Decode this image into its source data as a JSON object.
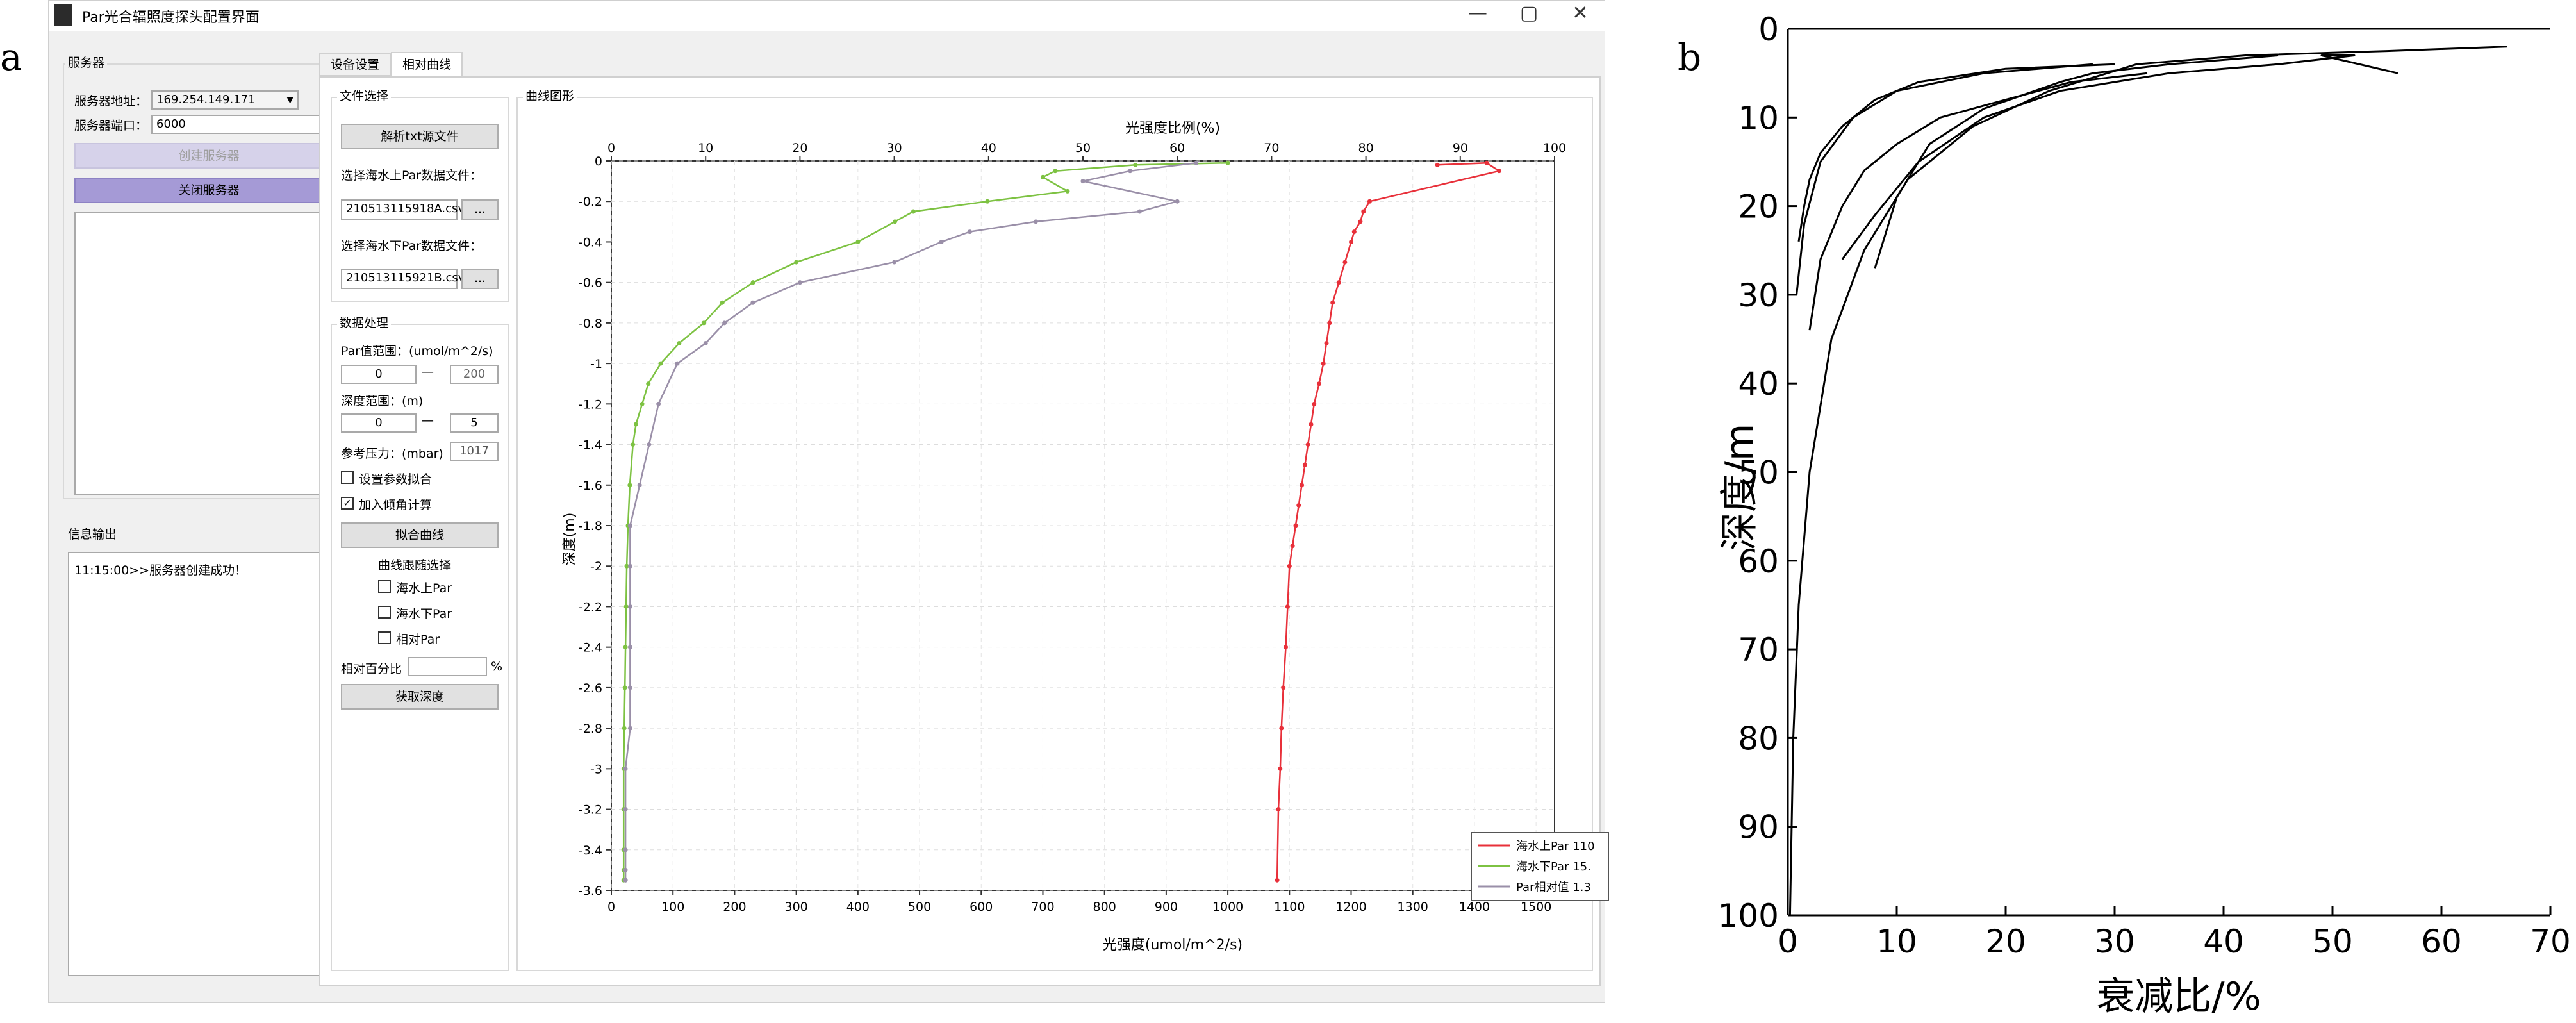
{
  "panel_a_label": "a",
  "panel_b_label": "b",
  "window": {
    "title": "Par光合辐照度探头配置界面",
    "min_glyph": "—",
    "max_glyph": "▢",
    "close_glyph": "✕"
  },
  "server": {
    "group_title": "服务器",
    "address_label": "服务器地址：",
    "address_value": "169.254.149.171",
    "port_label": "服务器端口：",
    "port_value": "6000",
    "create_button": "创建服务器",
    "close_button": "关闭服务器"
  },
  "info": {
    "group_title": "信息输出",
    "log_line": "11:15:00>>服务器创建成功！"
  },
  "tabs": [
    "设备设置",
    "相对曲线"
  ],
  "file_select": {
    "group_title": "文件选择",
    "parse_button": "解析txt源文件",
    "above_label": "选择海水上Par数据文件：",
    "above_file": "210513115918A.csv",
    "below_label": "选择海水下Par数据文件：",
    "below_file": "210513115921B.csv",
    "browse": "..."
  },
  "processing": {
    "group_title": "数据处理",
    "par_range_label": "Par值范围：(umol/m^2/s)",
    "par_min": "0",
    "par_max": "200",
    "depth_range_label": "深度范围：(m)",
    "depth_min": "0",
    "depth_max": "5",
    "range_sep": "—",
    "pressure_label": "参考压力：(mbar)",
    "pressure_value": "1017",
    "fit_param_label": "设置参数拟合",
    "fit_param_checked": false,
    "angle_label": "加入倾角计算",
    "angle_checked": true,
    "fit_button": "拟合曲线",
    "curve_select_title": "曲线跟随选择",
    "curve_options": [
      "海水上Par",
      "海水下Par",
      "相对Par"
    ],
    "ratio_label": "相对百分比",
    "ratio_value": "",
    "ratio_unit": "%",
    "depth_button": "获取深度"
  },
  "plot": {
    "group_title": "曲线图形",
    "top_axis_label": "光强度比例(%)",
    "bottom_axis_label": "光强度(umol/m^2/s)",
    "y_axis_label": "深度(m)",
    "legend": [
      "海水上Par 110",
      "海水下Par 15.",
      "Par相对值 1.3"
    ],
    "colors": {
      "above": "#e8303a",
      "below": "#7dc242",
      "relative": "#9a8fa8"
    }
  },
  "chart_data": {
    "type": "line",
    "y_top_ticks": [
      "0",
      "-0.2",
      "-0.4",
      "-0.6",
      "-0.8",
      "-1",
      "-1.2",
      "-1.4",
      "-1.6",
      "-1.8",
      "-2",
      "-2.2",
      "-2.4",
      "-2.6",
      "-2.8",
      "-3",
      "-3.2",
      "-3.4",
      "-3.6"
    ],
    "x_bottom_ticks": [
      "0",
      "100",
      "200",
      "300",
      "400",
      "500",
      "600",
      "700",
      "800",
      "900",
      "1000",
      "1100",
      "1200",
      "1300",
      "1400",
      "1500"
    ],
    "x_top_ticks": [
      "0",
      "10",
      "20",
      "30",
      "40",
      "50",
      "60",
      "70",
      "80",
      "90",
      "100"
    ],
    "xlim_bottom": [
      0,
      1530
    ],
    "xlim_top": [
      0,
      100
    ],
    "ylim": [
      -3.6,
      0
    ],
    "above_par": {
      "x": [
        1340,
        1420,
        1440,
        1230,
        1220,
        1215,
        1205,
        1200,
        1190,
        1180,
        1170,
        1165,
        1160,
        1155,
        1148,
        1140,
        1135,
        1130,
        1125,
        1120,
        1115,
        1110,
        1105,
        1100,
        1097,
        1094,
        1090,
        1087,
        1085,
        1082,
        1080
      ],
      "y": [
        -0.02,
        -0.01,
        -0.05,
        -0.2,
        -0.25,
        -0.3,
        -0.35,
        -0.4,
        -0.5,
        -0.6,
        -0.7,
        -0.8,
        -0.9,
        -1.0,
        -1.1,
        -1.2,
        -1.3,
        -1.4,
        -1.5,
        -1.6,
        -1.7,
        -1.8,
        -1.9,
        -2.0,
        -2.2,
        -2.4,
        -2.6,
        -2.8,
        -3.0,
        -3.2,
        -3.55
      ]
    },
    "below_par": {
      "x": [
        1000,
        850,
        720,
        700,
        740,
        610,
        490,
        460,
        400,
        300,
        230,
        180,
        150,
        110,
        80,
        60,
        50,
        40,
        35,
        30,
        27,
        25,
        24,
        23,
        22,
        21,
        20,
        20,
        20,
        20,
        20
      ],
      "y": [
        -0.01,
        -0.02,
        -0.05,
        -0.08,
        -0.15,
        -0.2,
        -0.25,
        -0.3,
        -0.4,
        -0.5,
        -0.6,
        -0.7,
        -0.8,
        -0.9,
        -1.0,
        -1.1,
        -1.2,
        -1.3,
        -1.4,
        -1.6,
        -1.8,
        -2.0,
        -2.2,
        -2.4,
        -2.6,
        -2.8,
        -3.0,
        -3.2,
        -3.4,
        -3.5,
        -3.55
      ]
    },
    "relative_par": {
      "x": [
        62,
        55,
        50,
        60,
        56,
        45,
        38,
        35,
        30,
        20,
        15,
        12,
        10,
        7,
        5,
        4,
        3,
        2,
        2,
        2,
        2,
        2,
        2,
        1.5,
        1.5,
        1.5,
        1.5,
        1.5,
        1.5,
        1.5
      ],
      "y": [
        -0.01,
        -0.05,
        -0.1,
        -0.2,
        -0.25,
        -0.3,
        -0.35,
        -0.4,
        -0.5,
        -0.6,
        -0.7,
        -0.8,
        -0.9,
        -1.0,
        -1.2,
        -1.4,
        -1.6,
        -1.8,
        -2.0,
        -2.2,
        -2.4,
        -2.6,
        -2.8,
        -3.0,
        -3.2,
        -3.4,
        -3.5,
        -3.55,
        -3.55,
        -3.55
      ]
    }
  },
  "chart_b": {
    "type": "line",
    "xlabel": "衰减比/%",
    "ylabel": "深度/m",
    "x_ticks": [
      "0",
      "10",
      "20",
      "30",
      "40",
      "50",
      "60",
      "70"
    ],
    "y_ticks": [
      "0",
      "10",
      "20",
      "30",
      "40",
      "50",
      "60",
      "70",
      "80",
      "90",
      "100"
    ],
    "xlim": [
      0,
      70
    ],
    "ylim": [
      0,
      100
    ],
    "series": [
      {
        "x": [
          30,
          20,
          12,
          8,
          5,
          3,
          2,
          1.5,
          1
        ],
        "y": [
          4,
          4.5,
          6,
          8,
          11,
          14,
          17,
          20,
          24
        ]
      },
      {
        "x": [
          28,
          18,
          10,
          6,
          3,
          1.5,
          0.8
        ],
        "y": [
          4,
          5,
          7,
          10,
          15,
          22,
          30
        ]
      },
      {
        "x": [
          33,
          26,
          20,
          14,
          10,
          7,
          5,
          3,
          2
        ],
        "y": [
          5,
          6,
          8,
          10,
          13,
          16,
          20,
          26,
          34
        ]
      },
      {
        "x": [
          45,
          35,
          28,
          25,
          18,
          13,
          10,
          8
        ],
        "y": [
          3,
          4,
          5,
          6,
          9,
          13,
          19,
          27
        ]
      },
      {
        "x": [
          56,
          49,
          52,
          45,
          35,
          25,
          18,
          12,
          8,
          5
        ],
        "y": [
          5,
          3,
          3,
          4,
          5,
          7,
          10,
          15,
          21,
          26
        ]
      },
      {
        "x": [
          66,
          55,
          42,
          32,
          24,
          17,
          11,
          7,
          4,
          2,
          1,
          0.5,
          0.2
        ],
        "y": [
          2,
          2.5,
          3,
          4,
          7,
          11,
          17,
          25,
          35,
          50,
          65,
          80,
          100
        ]
      }
    ]
  }
}
